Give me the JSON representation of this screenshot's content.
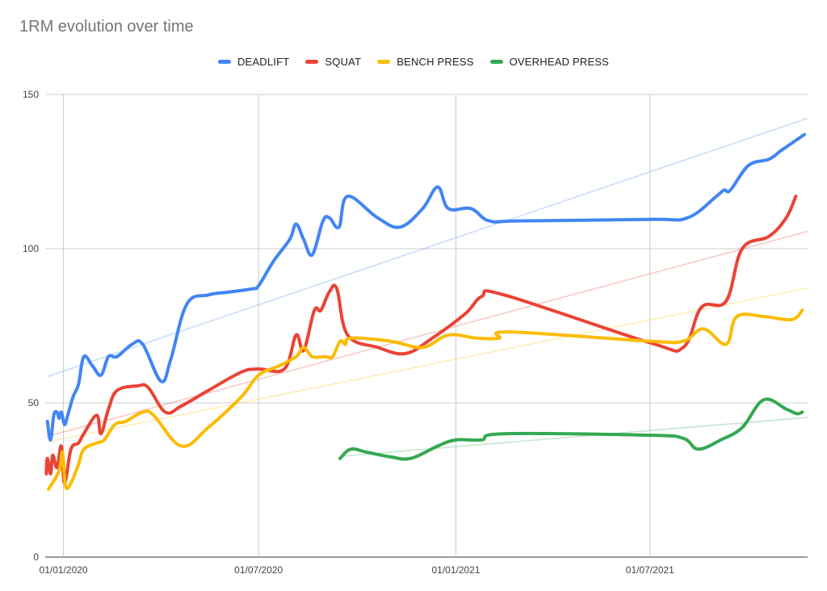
{
  "chart_data": {
    "type": "line",
    "title": "1RM evolution over time",
    "xlabel": "",
    "ylabel": "",
    "x_axis": "date",
    "xlim": [
      "2019-12-15",
      "2021-11-25"
    ],
    "ylim": [
      0,
      150
    ],
    "x_ticks": [
      "2020-01-01",
      "2020-07-01",
      "2021-01-01",
      "2021-07-01"
    ],
    "x_tick_labels": [
      "01/01/2020",
      "01/07/2020",
      "01/01/2021",
      "01/07/2021"
    ],
    "y_ticks": [
      0,
      50,
      100,
      150
    ],
    "y_tick_labels": [
      "0",
      "50",
      "100",
      "150"
    ],
    "grid": true,
    "legend_position": "top",
    "trendlines": true,
    "series": [
      {
        "name": "DEADLIFT",
        "color": "#4285F4",
        "points": [
          [
            "2019-12-17",
            44
          ],
          [
            "2019-12-20",
            38
          ],
          [
            "2019-12-23",
            46
          ],
          [
            "2019-12-26",
            47
          ],
          [
            "2019-12-28",
            45
          ],
          [
            "2019-12-30",
            47
          ],
          [
            "2020-01-02",
            43
          ],
          [
            "2020-01-05",
            46
          ],
          [
            "2020-01-10",
            52
          ],
          [
            "2020-01-15",
            56
          ],
          [
            "2020-01-20",
            65
          ],
          [
            "2020-01-28",
            62
          ],
          [
            "2020-02-05",
            59
          ],
          [
            "2020-02-12",
            65
          ],
          [
            "2020-02-20",
            65
          ],
          [
            "2020-03-05",
            69
          ],
          [
            "2020-03-15",
            69
          ],
          [
            "2020-04-01",
            57
          ],
          [
            "2020-04-10",
            64
          ],
          [
            "2020-04-25",
            82
          ],
          [
            "2020-05-15",
            85
          ],
          [
            "2020-06-05",
            86
          ],
          [
            "2020-06-25",
            87
          ],
          [
            "2020-07-01",
            88
          ],
          [
            "2020-07-15",
            96
          ],
          [
            "2020-07-30",
            103
          ],
          [
            "2020-08-05",
            108
          ],
          [
            "2020-08-12",
            103
          ],
          [
            "2020-08-20",
            98
          ],
          [
            "2020-08-30",
            109
          ],
          [
            "2020-09-05",
            110
          ],
          [
            "2020-09-14",
            107
          ],
          [
            "2020-09-22",
            117
          ],
          [
            "2020-10-20",
            110
          ],
          [
            "2020-11-10",
            107
          ],
          [
            "2020-12-01",
            113
          ],
          [
            "2020-12-15",
            120
          ],
          [
            "2020-12-25",
            113
          ],
          [
            "2021-01-15",
            113
          ],
          [
            "2021-02-01",
            109
          ],
          [
            "2021-03-01",
            109
          ],
          [
            "2021-07-01",
            109.5
          ],
          [
            "2021-08-05",
            110
          ],
          [
            "2021-09-01",
            117
          ],
          [
            "2021-09-08",
            119
          ],
          [
            "2021-09-14",
            119
          ],
          [
            "2021-10-01",
            127
          ],
          [
            "2021-10-20",
            129
          ],
          [
            "2021-11-01",
            132
          ],
          [
            "2021-11-22",
            137
          ]
        ]
      },
      {
        "name": "SQUAT",
        "color": "#EA4335",
        "points": [
          [
            "2019-12-16",
            27
          ],
          [
            "2019-12-17",
            32
          ],
          [
            "2019-12-20",
            27
          ],
          [
            "2019-12-22",
            33
          ],
          [
            "2019-12-26",
            29
          ],
          [
            "2019-12-30",
            36
          ],
          [
            "2020-01-02",
            24
          ],
          [
            "2020-01-08",
            35
          ],
          [
            "2020-01-15",
            37
          ],
          [
            "2020-01-20",
            40
          ],
          [
            "2020-02-01",
            46
          ],
          [
            "2020-02-05",
            40
          ],
          [
            "2020-02-12",
            48
          ],
          [
            "2020-02-20",
            54
          ],
          [
            "2020-03-10",
            55.5
          ],
          [
            "2020-03-20",
            55
          ],
          [
            "2020-04-05",
            47
          ],
          [
            "2020-04-20",
            49
          ],
          [
            "2020-05-15",
            54
          ],
          [
            "2020-06-15",
            60
          ],
          [
            "2020-07-01",
            61
          ],
          [
            "2020-07-25",
            61
          ],
          [
            "2020-08-05",
            72
          ],
          [
            "2020-08-12",
            67
          ],
          [
            "2020-08-22",
            80
          ],
          [
            "2020-08-28",
            80
          ],
          [
            "2020-09-05",
            86
          ],
          [
            "2020-09-12",
            87
          ],
          [
            "2020-09-22",
            72
          ],
          [
            "2020-10-20",
            68
          ],
          [
            "2020-11-15",
            66
          ],
          [
            "2020-12-10",
            71
          ],
          [
            "2021-01-10",
            79
          ],
          [
            "2021-01-25",
            84.5
          ],
          [
            "2021-02-15",
            85
          ],
          [
            "2021-07-01",
            69.5
          ],
          [
            "2021-08-01",
            68
          ],
          [
            "2021-08-18",
            81
          ],
          [
            "2021-09-10",
            83
          ],
          [
            "2021-09-25",
            100
          ],
          [
            "2021-10-20",
            104
          ],
          [
            "2021-11-05",
            110
          ],
          [
            "2021-11-14",
            117
          ]
        ]
      },
      {
        "name": "BENCH PRESS",
        "color": "#FBBC04",
        "points": [
          [
            "2019-12-18",
            22
          ],
          [
            "2019-12-28",
            28
          ],
          [
            "2019-12-31",
            34
          ],
          [
            "2020-01-03",
            23
          ],
          [
            "2020-01-08",
            24
          ],
          [
            "2020-01-15",
            30
          ],
          [
            "2020-01-20",
            35
          ],
          [
            "2020-02-01",
            37
          ],
          [
            "2020-02-08",
            38
          ],
          [
            "2020-02-18",
            43
          ],
          [
            "2020-02-28",
            44
          ],
          [
            "2020-03-15",
            47
          ],
          [
            "2020-03-25",
            46
          ],
          [
            "2020-04-20",
            36
          ],
          [
            "2020-05-15",
            42
          ],
          [
            "2020-06-15",
            52
          ],
          [
            "2020-07-01",
            59
          ],
          [
            "2020-07-20",
            62
          ],
          [
            "2020-08-05",
            65
          ],
          [
            "2020-08-12",
            68
          ],
          [
            "2020-08-20",
            65
          ],
          [
            "2020-09-01",
            65
          ],
          [
            "2020-09-08",
            65
          ],
          [
            "2020-09-15",
            70
          ],
          [
            "2020-09-20",
            69
          ],
          [
            "2020-09-25",
            71
          ],
          [
            "2020-11-01",
            70
          ],
          [
            "2020-12-01",
            68
          ],
          [
            "2020-12-25",
            72
          ],
          [
            "2021-01-20",
            71
          ],
          [
            "2021-02-10",
            71
          ],
          [
            "2021-02-20",
            73
          ],
          [
            "2021-07-01",
            70
          ],
          [
            "2021-08-01",
            70
          ],
          [
            "2021-08-20",
            74
          ],
          [
            "2021-09-10",
            69
          ],
          [
            "2021-09-20",
            78
          ],
          [
            "2021-10-15",
            78
          ],
          [
            "2021-11-10",
            77
          ],
          [
            "2021-11-20",
            80
          ]
        ]
      },
      {
        "name": "OVERHEAD PRESS",
        "color": "#34A853",
        "points": [
          [
            "2020-09-15",
            32
          ],
          [
            "2020-09-25",
            35
          ],
          [
            "2020-10-10",
            34
          ],
          [
            "2020-11-01",
            32.5
          ],
          [
            "2020-11-20",
            32
          ],
          [
            "2020-12-15",
            36
          ],
          [
            "2021-01-01",
            38
          ],
          [
            "2021-01-25",
            38
          ],
          [
            "2021-02-15",
            40
          ],
          [
            "2021-07-01",
            39.5
          ],
          [
            "2021-08-01",
            38.5
          ],
          [
            "2021-08-15",
            35
          ],
          [
            "2021-09-05",
            38
          ],
          [
            "2021-09-25",
            42
          ],
          [
            "2021-10-15",
            51
          ],
          [
            "2021-11-05",
            48
          ],
          [
            "2021-11-15",
            46.5
          ],
          [
            "2021-11-20",
            47
          ]
        ]
      }
    ]
  }
}
